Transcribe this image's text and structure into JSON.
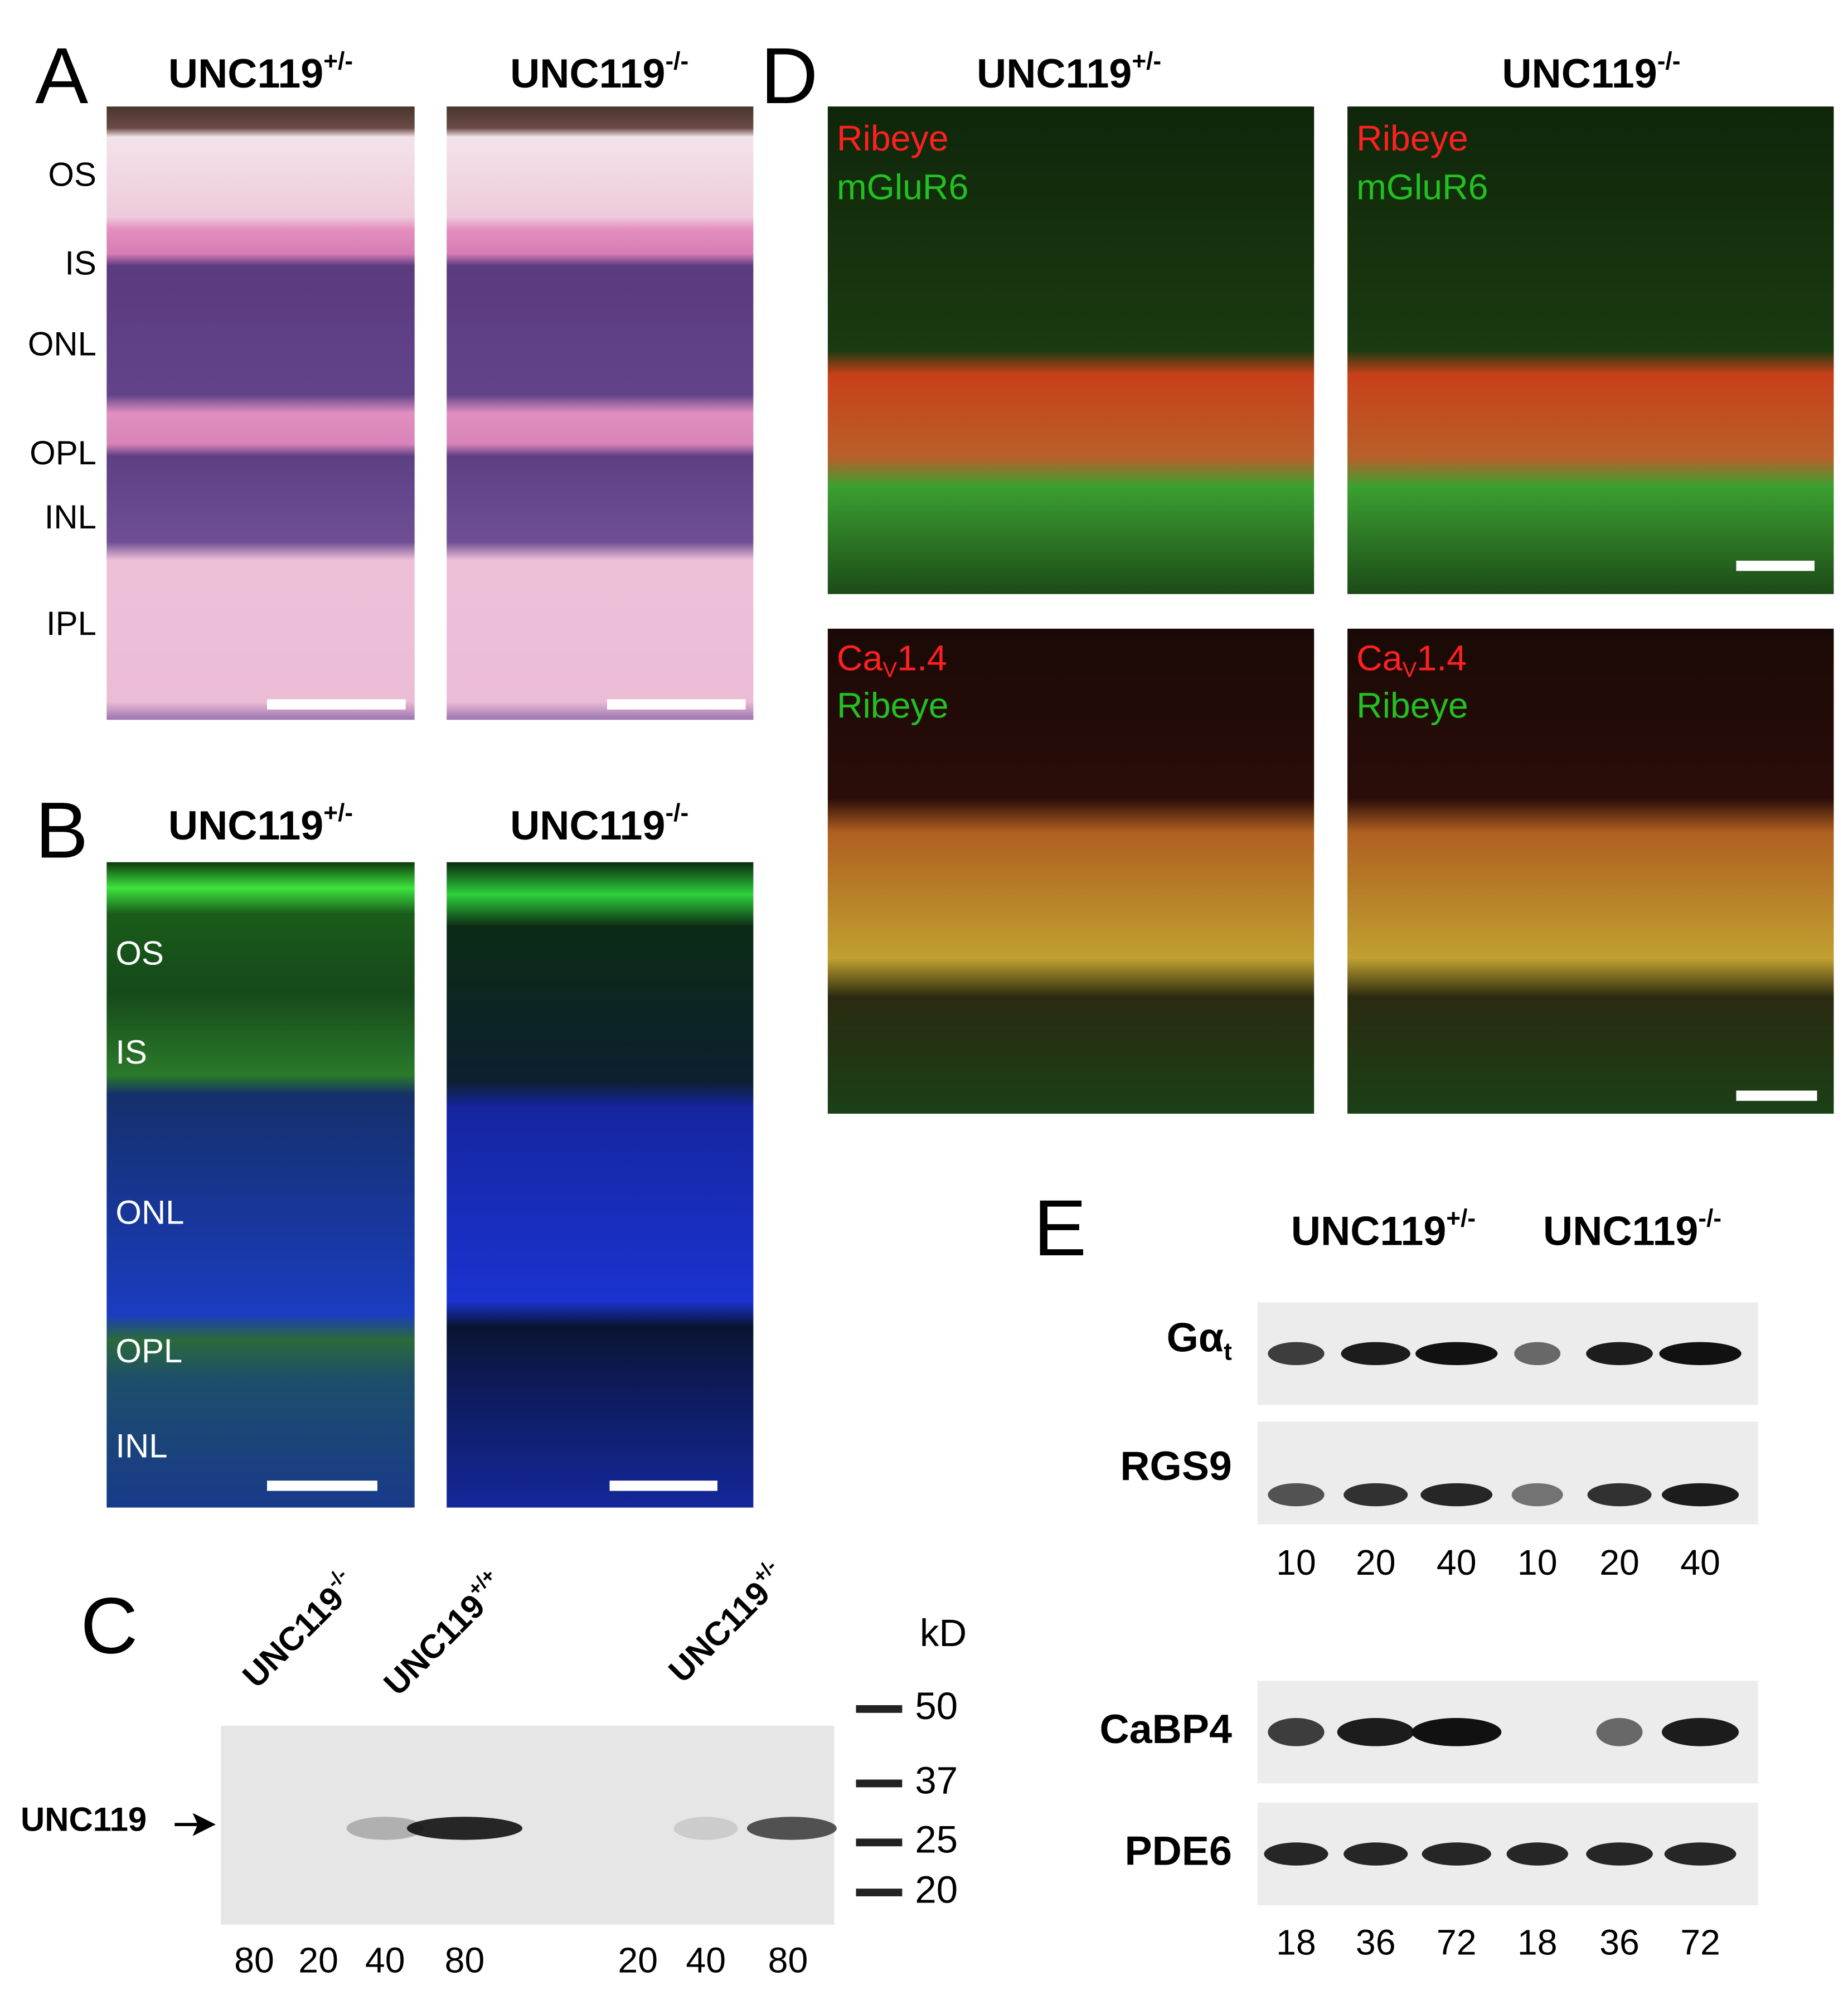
{
  "panels": {
    "A": {
      "letter": "A",
      "headings": [
        {
          "base": "UNC119",
          "sup": "+/-"
        },
        {
          "base": "UNC119",
          "sup": "-/-"
        }
      ],
      "layers": [
        "OS",
        "IS",
        "ONL",
        "OPL",
        "INL",
        "IPL"
      ]
    },
    "B": {
      "letter": "B",
      "headings": [
        {
          "base": "UNC119",
          "sup": "+/-"
        },
        {
          "base": "UNC119",
          "sup": "-/-"
        }
      ],
      "layers": [
        "OS",
        "IS",
        "ONL",
        "OPL",
        "INL"
      ]
    },
    "C": {
      "letter": "C",
      "headings": [
        {
          "base": "UNC119",
          "sup": "-/-"
        },
        {
          "base": "UNC119",
          "sup": "+/+"
        },
        {
          "base": "UNC119",
          "sup": "+/-"
        }
      ],
      "unit": "kD",
      "markers": [
        50,
        37,
        25,
        20
      ],
      "band_label": "UNC119",
      "lanes": [
        80,
        20,
        40,
        80,
        20,
        40,
        80
      ]
    },
    "D": {
      "letter": "D",
      "headings": [
        {
          "base": "UNC119",
          "sup": "+/-"
        },
        {
          "base": "UNC119",
          "sup": "-/-"
        }
      ],
      "top_stains": [
        "Ribeye",
        "mGluR6"
      ],
      "bottom_stains": [
        {
          "base": "Ca",
          "sub": "V",
          "rest": "1.4"
        },
        "Ribeye"
      ]
    },
    "E": {
      "letter": "E",
      "headings": [
        {
          "base": "UNC119",
          "sup": "+/-"
        },
        {
          "base": "UNC119",
          "sup": "-/-"
        }
      ],
      "rows": [
        {
          "base": "Gα",
          "sub": "t"
        },
        "RGS9",
        "CaBP4",
        "PDE6"
      ],
      "lanes_top": [
        10,
        20,
        40,
        10,
        20,
        40
      ],
      "lanes_bottom": [
        18,
        36,
        72,
        18,
        36,
        72
      ]
    }
  }
}
